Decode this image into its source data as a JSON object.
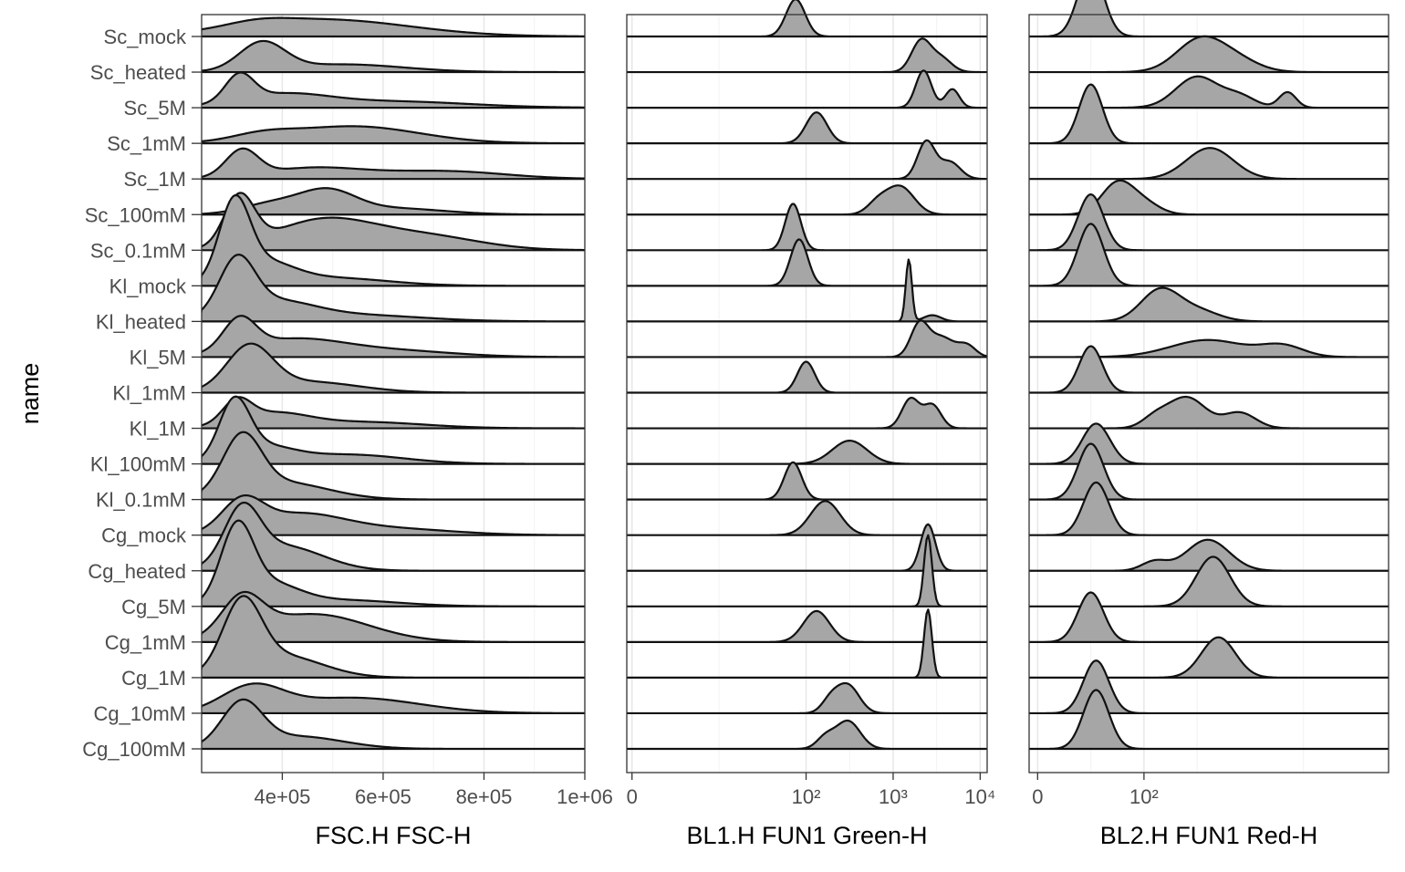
{
  "chart_data": {
    "type": "ridgeline",
    "ylabel": "name",
    "categories": [
      "Sc_mock",
      "Sc_heated",
      "Sc_5M",
      "Sc_1mM",
      "Sc_1M",
      "Sc_100mM",
      "Sc_0.1mM",
      "Kl_mock",
      "Kl_heated",
      "Kl_5M",
      "Kl_1mM",
      "Kl_1M",
      "Kl_100mM",
      "Kl_0.1mM",
      "Cg_mock",
      "Cg_heated",
      "Cg_5M",
      "Cg_1mM",
      "Cg_1M",
      "Cg_10mM",
      "Cg_100mM"
    ],
    "grid": true,
    "fill_color": "#a6a6a6",
    "line_color": "#111111",
    "panels": [
      {
        "xlabel": "FSC.H FSC-H",
        "scale": "linear",
        "xlim": [
          240000,
          1000000
        ],
        "ticks": [
          "4e+05",
          "6e+05",
          "8e+05",
          "1e+06"
        ],
        "tick_values": [
          400000,
          600000,
          800000,
          1000000
        ],
        "series": [
          {
            "name": "Sc_mock",
            "peaks": [
              [
                480000,
                0.55,
                170000
              ],
              [
                350000,
                0.15,
                60000
              ]
            ]
          },
          {
            "name": "Sc_heated",
            "peaks": [
              [
                360000,
                0.9,
                45000
              ],
              [
                520000,
                0.25,
                120000
              ]
            ]
          },
          {
            "name": "Sc_5M",
            "peaks": [
              [
                315000,
                0.85,
                28000
              ],
              [
                400000,
                0.4,
                90000
              ],
              [
                620000,
                0.2,
                150000
              ]
            ]
          },
          {
            "name": "Sc_1mM",
            "peaks": [
              [
                540000,
                0.55,
                130000
              ],
              [
                360000,
                0.2,
                60000
              ]
            ]
          },
          {
            "name": "Sc_1M",
            "peaks": [
              [
                320000,
                0.85,
                32000
              ],
              [
                460000,
                0.35,
                100000
              ],
              [
                720000,
                0.25,
                120000
              ]
            ]
          },
          {
            "name": "Sc_100mM",
            "peaks": [
              [
                490000,
                0.7,
                55000
              ],
              [
                380000,
                0.35,
                60000
              ],
              [
                620000,
                0.2,
                100000
              ]
            ]
          },
          {
            "name": "Sc_0.1mM",
            "peaks": [
              [
                315000,
                1.6,
                30000
              ],
              [
                480000,
                0.95,
                100000
              ],
              [
                680000,
                0.45,
                110000
              ]
            ]
          },
          {
            "name": "Kl_mock",
            "peaks": [
              [
                305000,
                2.4,
                30000
              ],
              [
                360000,
                0.7,
                60000
              ],
              [
                500000,
                0.25,
                110000
              ]
            ]
          },
          {
            "name": "Kl_heated",
            "peaks": [
              [
                310000,
                1.7,
                35000
              ],
              [
                380000,
                0.6,
                80000
              ],
              [
                550000,
                0.2,
                130000
              ]
            ]
          },
          {
            "name": "Kl_5M",
            "peaks": [
              [
                315000,
                1.0,
                32000
              ],
              [
                420000,
                0.55,
                100000
              ],
              [
                620000,
                0.2,
                120000
              ]
            ]
          },
          {
            "name": "Kl_1mM",
            "peaks": [
              [
                335000,
                1.4,
                45000
              ],
              [
                450000,
                0.35,
                100000
              ]
            ]
          },
          {
            "name": "Kl_1M",
            "peaks": [
              [
                310000,
                0.7,
                28000
              ],
              [
                380000,
                0.45,
                70000
              ],
              [
                560000,
                0.2,
                120000
              ]
            ]
          },
          {
            "name": "Kl_100mM",
            "peaks": [
              [
                305000,
                1.8,
                30000
              ],
              [
                360000,
                0.5,
                60000
              ],
              [
                530000,
                0.3,
                110000
              ]
            ]
          },
          {
            "name": "Kl_0.1mM",
            "peaks": [
              [
                320000,
                1.8,
                38000
              ],
              [
                400000,
                0.55,
                90000
              ]
            ]
          },
          {
            "name": "Cg_mock",
            "peaks": [
              [
                320000,
                0.95,
                40000
              ],
              [
                430000,
                0.65,
                90000
              ],
              [
                620000,
                0.2,
                120000
              ]
            ]
          },
          {
            "name": "Cg_heated",
            "peaks": [
              [
                320000,
                1.7,
                35000
              ],
              [
                400000,
                0.8,
                80000
              ]
            ]
          },
          {
            "name": "Cg_5M",
            "peaks": [
              [
                310000,
                2.3,
                32000
              ],
              [
                370000,
                0.7,
                60000
              ],
              [
                520000,
                0.2,
                110000
              ]
            ]
          },
          {
            "name": "Cg_1mM",
            "peaks": [
              [
                320000,
                1.2,
                40000
              ],
              [
                460000,
                0.9,
                110000
              ]
            ]
          },
          {
            "name": "Cg_1M",
            "peaks": [
              [
                320000,
                2.2,
                38000
              ],
              [
                400000,
                0.7,
                80000
              ]
            ]
          },
          {
            "name": "Cg_10mM",
            "peaks": [
              [
                340000,
                0.8,
                60000
              ],
              [
                540000,
                0.5,
                130000
              ]
            ]
          },
          {
            "name": "Cg_100mM",
            "peaks": [
              [
                320000,
                1.4,
                40000
              ],
              [
                430000,
                0.4,
                90000
              ]
            ]
          }
        ]
      },
      {
        "xlabel": "BL1.H FUN1 Green-H",
        "scale": "pseudo-log",
        "xlim": [
          -0.06,
          4.08
        ],
        "ticks": [
          "0",
          "10²",
          "10³",
          "10⁴"
        ],
        "tick_values": [
          0,
          2,
          3,
          4
        ],
        "series": [
          {
            "name": "Sc_mock",
            "peaks": [
              [
                1.88,
                1.2,
                0.11
              ]
            ]
          },
          {
            "name": "Sc_heated",
            "peaks": [
              [
                3.32,
                1.0,
                0.11
              ],
              [
                3.55,
                0.45,
                0.12
              ]
            ]
          },
          {
            "name": "Sc_5M",
            "peaks": [
              [
                3.35,
                1.2,
                0.09
              ],
              [
                3.68,
                0.6,
                0.08
              ]
            ]
          },
          {
            "name": "Sc_1mM",
            "peaks": [
              [
                2.12,
                1.0,
                0.12
              ]
            ]
          },
          {
            "name": "Sc_1M",
            "peaks": [
              [
                3.38,
                1.2,
                0.1
              ],
              [
                3.65,
                0.55,
                0.12
              ]
            ]
          },
          {
            "name": "Sc_100mM",
            "peaks": [
              [
                3.08,
                0.9,
                0.16
              ],
              [
                2.82,
                0.35,
                0.12
              ]
            ]
          },
          {
            "name": "Sc_0.1mM",
            "peaks": [
              [
                1.85,
                1.5,
                0.09
              ]
            ]
          },
          {
            "name": "Kl_mock",
            "peaks": [
              [
                1.92,
                1.5,
                0.1
              ]
            ]
          },
          {
            "name": "Kl_heated",
            "peaks": [
              [
                3.18,
                2.0,
                0.035
              ],
              [
                3.45,
                0.2,
                0.1
              ]
            ]
          },
          {
            "name": "Kl_5M",
            "peaks": [
              [
                3.3,
                1.0,
                0.1
              ],
              [
                3.55,
                0.65,
                0.15
              ],
              [
                3.85,
                0.35,
                0.1
              ]
            ]
          },
          {
            "name": "Kl_1mM",
            "peaks": [
              [
                2.0,
                1.0,
                0.1
              ]
            ]
          },
          {
            "name": "Kl_1M",
            "peaks": [
              [
                3.2,
                0.95,
                0.1
              ],
              [
                3.45,
                0.75,
                0.1
              ]
            ]
          },
          {
            "name": "Kl_100mM",
            "peaks": [
              [
                2.5,
                0.75,
                0.2
              ]
            ]
          },
          {
            "name": "Kl_0.1mM",
            "peaks": [
              [
                1.85,
                1.2,
                0.1
              ]
            ]
          },
          {
            "name": "Cg_mock",
            "peaks": [
              [
                2.22,
                1.1,
                0.17
              ]
            ]
          },
          {
            "name": "Cg_heated",
            "peaks": [
              [
                3.4,
                1.5,
                0.085
              ]
            ]
          },
          {
            "name": "Cg_5M",
            "peaks": [
              [
                3.4,
                2.3,
                0.045
              ]
            ]
          },
          {
            "name": "Cg_1mM",
            "peaks": [
              [
                2.12,
                1.0,
                0.15
              ]
            ]
          },
          {
            "name": "Cg_1M",
            "peaks": [
              [
                3.4,
                2.2,
                0.045
              ]
            ]
          },
          {
            "name": "Cg_10mM",
            "peaks": [
              [
                2.48,
                0.9,
                0.13
              ],
              [
                2.28,
                0.4,
                0.1
              ]
            ]
          },
          {
            "name": "Cg_100mM",
            "peaks": [
              [
                2.48,
                0.9,
                0.14
              ],
              [
                2.22,
                0.35,
                0.1
              ]
            ]
          }
        ]
      },
      {
        "xlabel": "BL2.H FUN1 Red-H",
        "scale": "pseudo-log",
        "xlim": [
          -0.08,
          3.3
        ],
        "ticks": [
          "0",
          "10²"
        ],
        "tick_values": [
          0,
          1
        ],
        "series": [
          {
            "name": "Sc_mock",
            "peaks": [
              [
                0.5,
                2.2,
                0.12
              ]
            ]
          },
          {
            "name": "Sc_heated",
            "peaks": [
              [
                1.52,
                1.0,
                0.22
              ],
              [
                1.85,
                0.4,
                0.22
              ]
            ]
          },
          {
            "name": "Sc_5M",
            "peaks": [
              [
                1.5,
                1.0,
                0.2
              ],
              [
                2.35,
                0.5,
                0.08
              ],
              [
                1.9,
                0.35,
                0.15
              ]
            ]
          },
          {
            "name": "Sc_1mM",
            "peaks": [
              [
                0.5,
                1.9,
                0.11
              ]
            ]
          },
          {
            "name": "Sc_1M",
            "peaks": [
              [
                1.62,
                1.0,
                0.22
              ]
            ]
          },
          {
            "name": "Sc_100mM",
            "peaks": [
              [
                0.75,
                1.0,
                0.15
              ],
              [
                1.0,
                0.35,
                0.15
              ]
            ]
          },
          {
            "name": "Sc_0.1mM",
            "peaks": [
              [
                0.5,
                1.8,
                0.12
              ]
            ]
          },
          {
            "name": "Kl_mock",
            "peaks": [
              [
                0.5,
                2.0,
                0.12
              ]
            ]
          },
          {
            "name": "Kl_heated",
            "peaks": [
              [
                1.15,
                1.0,
                0.18
              ],
              [
                1.5,
                0.35,
                0.2
              ]
            ]
          },
          {
            "name": "Kl_5M",
            "peaks": [
              [
                1.6,
                0.55,
                0.35
              ],
              [
                2.3,
                0.35,
                0.2
              ]
            ]
          },
          {
            "name": "Kl_1mM",
            "peaks": [
              [
                0.5,
                1.5,
                0.11
              ]
            ]
          },
          {
            "name": "Kl_1M",
            "peaks": [
              [
                1.4,
                1.0,
                0.18
              ],
              [
                1.9,
                0.5,
                0.15
              ],
              [
                1.1,
                0.3,
                0.12
              ]
            ]
          },
          {
            "name": "Kl_100mM",
            "peaks": [
              [
                0.55,
                1.3,
                0.13
              ]
            ]
          },
          {
            "name": "Kl_0.1mM",
            "peaks": [
              [
                0.5,
                1.8,
                0.12
              ]
            ]
          },
          {
            "name": "Cg_mock",
            "peaks": [
              [
                0.55,
                1.7,
                0.12
              ]
            ]
          },
          {
            "name": "Cg_heated",
            "peaks": [
              [
                1.6,
                1.0,
                0.2
              ],
              [
                1.1,
                0.3,
                0.12
              ]
            ]
          },
          {
            "name": "Cg_5M",
            "peaks": [
              [
                1.65,
                1.6,
                0.16
              ]
            ]
          },
          {
            "name": "Cg_1mM",
            "peaks": [
              [
                0.5,
                1.6,
                0.12
              ]
            ]
          },
          {
            "name": "Cg_1M",
            "peaks": [
              [
                1.7,
                1.3,
                0.16
              ]
            ]
          },
          {
            "name": "Cg_10mM",
            "peaks": [
              [
                0.55,
                1.7,
                0.12
              ]
            ]
          },
          {
            "name": "Cg_100mM",
            "peaks": [
              [
                0.55,
                1.9,
                0.12
              ]
            ]
          }
        ]
      }
    ]
  }
}
